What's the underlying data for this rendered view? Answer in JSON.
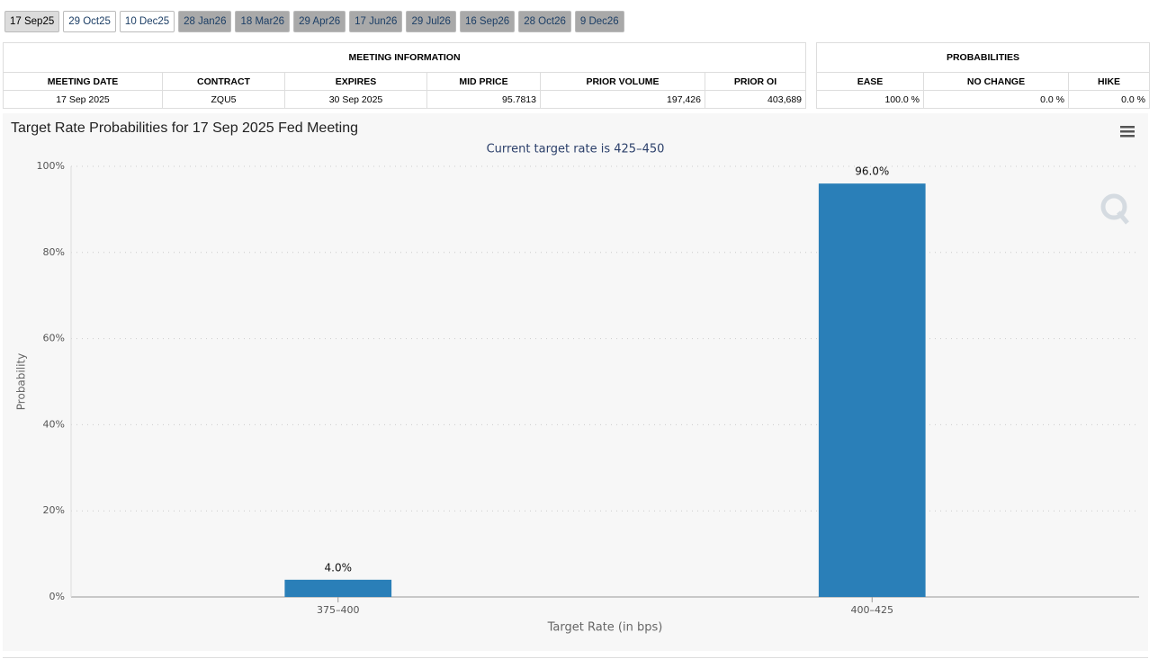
{
  "tabs": [
    "17 Sep25",
    "29 Oct25",
    "10 Dec25",
    "28 Jan26",
    "18 Mar26",
    "29 Apr26",
    "17 Jun26",
    "29 Jul26",
    "16 Sep26",
    "28 Oct26",
    "9 Dec26"
  ],
  "meeting_info": {
    "title": "MEETING INFORMATION",
    "headers": [
      "MEETING DATE",
      "CONTRACT",
      "EXPIRES",
      "MID PRICE",
      "PRIOR VOLUME",
      "PRIOR OI"
    ],
    "row": [
      "17 Sep 2025",
      "ZQU5",
      "30 Sep 2025",
      "95.7813",
      "197,426",
      "403,689"
    ]
  },
  "probabilities": {
    "title": "PROBABILITIES",
    "headers": [
      "EASE",
      "NO CHANGE",
      "HIKE"
    ],
    "row": [
      "100.0 %",
      "0.0 %",
      "0.0 %"
    ]
  },
  "chart_data": {
    "type": "bar",
    "title": "Target Rate Probabilities for 17 Sep 2025 Fed Meeting",
    "subtitle": "Current target rate is 425–450",
    "x_label": "Target Rate (in bps)",
    "y_label": "Probability",
    "categories": [
      "375–400",
      "400–425"
    ],
    "values": [
      4,
      96
    ],
    "value_labels": [
      "4.0%",
      "96.0%"
    ],
    "color": "#2a7fb8",
    "ylim": [
      0,
      100
    ],
    "yticks": [
      {
        "value": 0,
        "label": "0%"
      },
      {
        "value": 20,
        "label": "20%"
      },
      {
        "value": 40,
        "label": "40%"
      },
      {
        "value": 60,
        "label": "60%"
      },
      {
        "value": 80,
        "label": "80%"
      },
      {
        "value": 100,
        "label": "100%"
      }
    ],
    "grid": true
  }
}
